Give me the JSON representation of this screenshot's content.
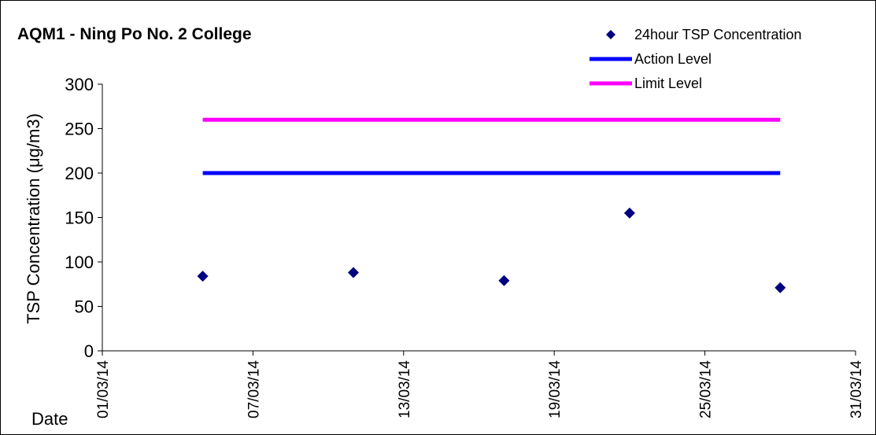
{
  "chart_data": {
    "type": "scatter",
    "title": "AQM1 - Ning Po No. 2 College",
    "ylabel": "TSP Concentration (μg/m3)",
    "xlabel": "Date",
    "ylim": [
      0,
      300
    ],
    "yticks": [
      "0",
      "50",
      "100",
      "150",
      "200",
      "250",
      "300"
    ],
    "xlim": [
      "01/03/14",
      "31/03/14"
    ],
    "xticks": [
      "01/03/14",
      "07/03/14",
      "13/03/14",
      "19/03/14",
      "25/03/14",
      "31/03/14"
    ],
    "grid": false,
    "legend_position": "top-right",
    "series": [
      {
        "name": "24hour TSP Concentration",
        "type": "scatter",
        "marker": "diamond",
        "color": "#000080",
        "points": [
          {
            "x": "05/03/14",
            "y": 84
          },
          {
            "x": "11/03/14",
            "y": 88
          },
          {
            "x": "17/03/14",
            "y": 79
          },
          {
            "x": "22/03/14",
            "y": 155
          },
          {
            "x": "28/03/14",
            "y": 71
          }
        ]
      },
      {
        "name": "Action Level",
        "type": "line",
        "color": "#0000ff",
        "points": [
          {
            "x": "05/03/14",
            "y": 200
          },
          {
            "x": "28/03/14",
            "y": 200
          }
        ]
      },
      {
        "name": "Limit Level",
        "type": "line",
        "color": "#ff00ff",
        "points": [
          {
            "x": "05/03/14",
            "y": 260
          },
          {
            "x": "28/03/14",
            "y": 260
          }
        ]
      }
    ]
  }
}
